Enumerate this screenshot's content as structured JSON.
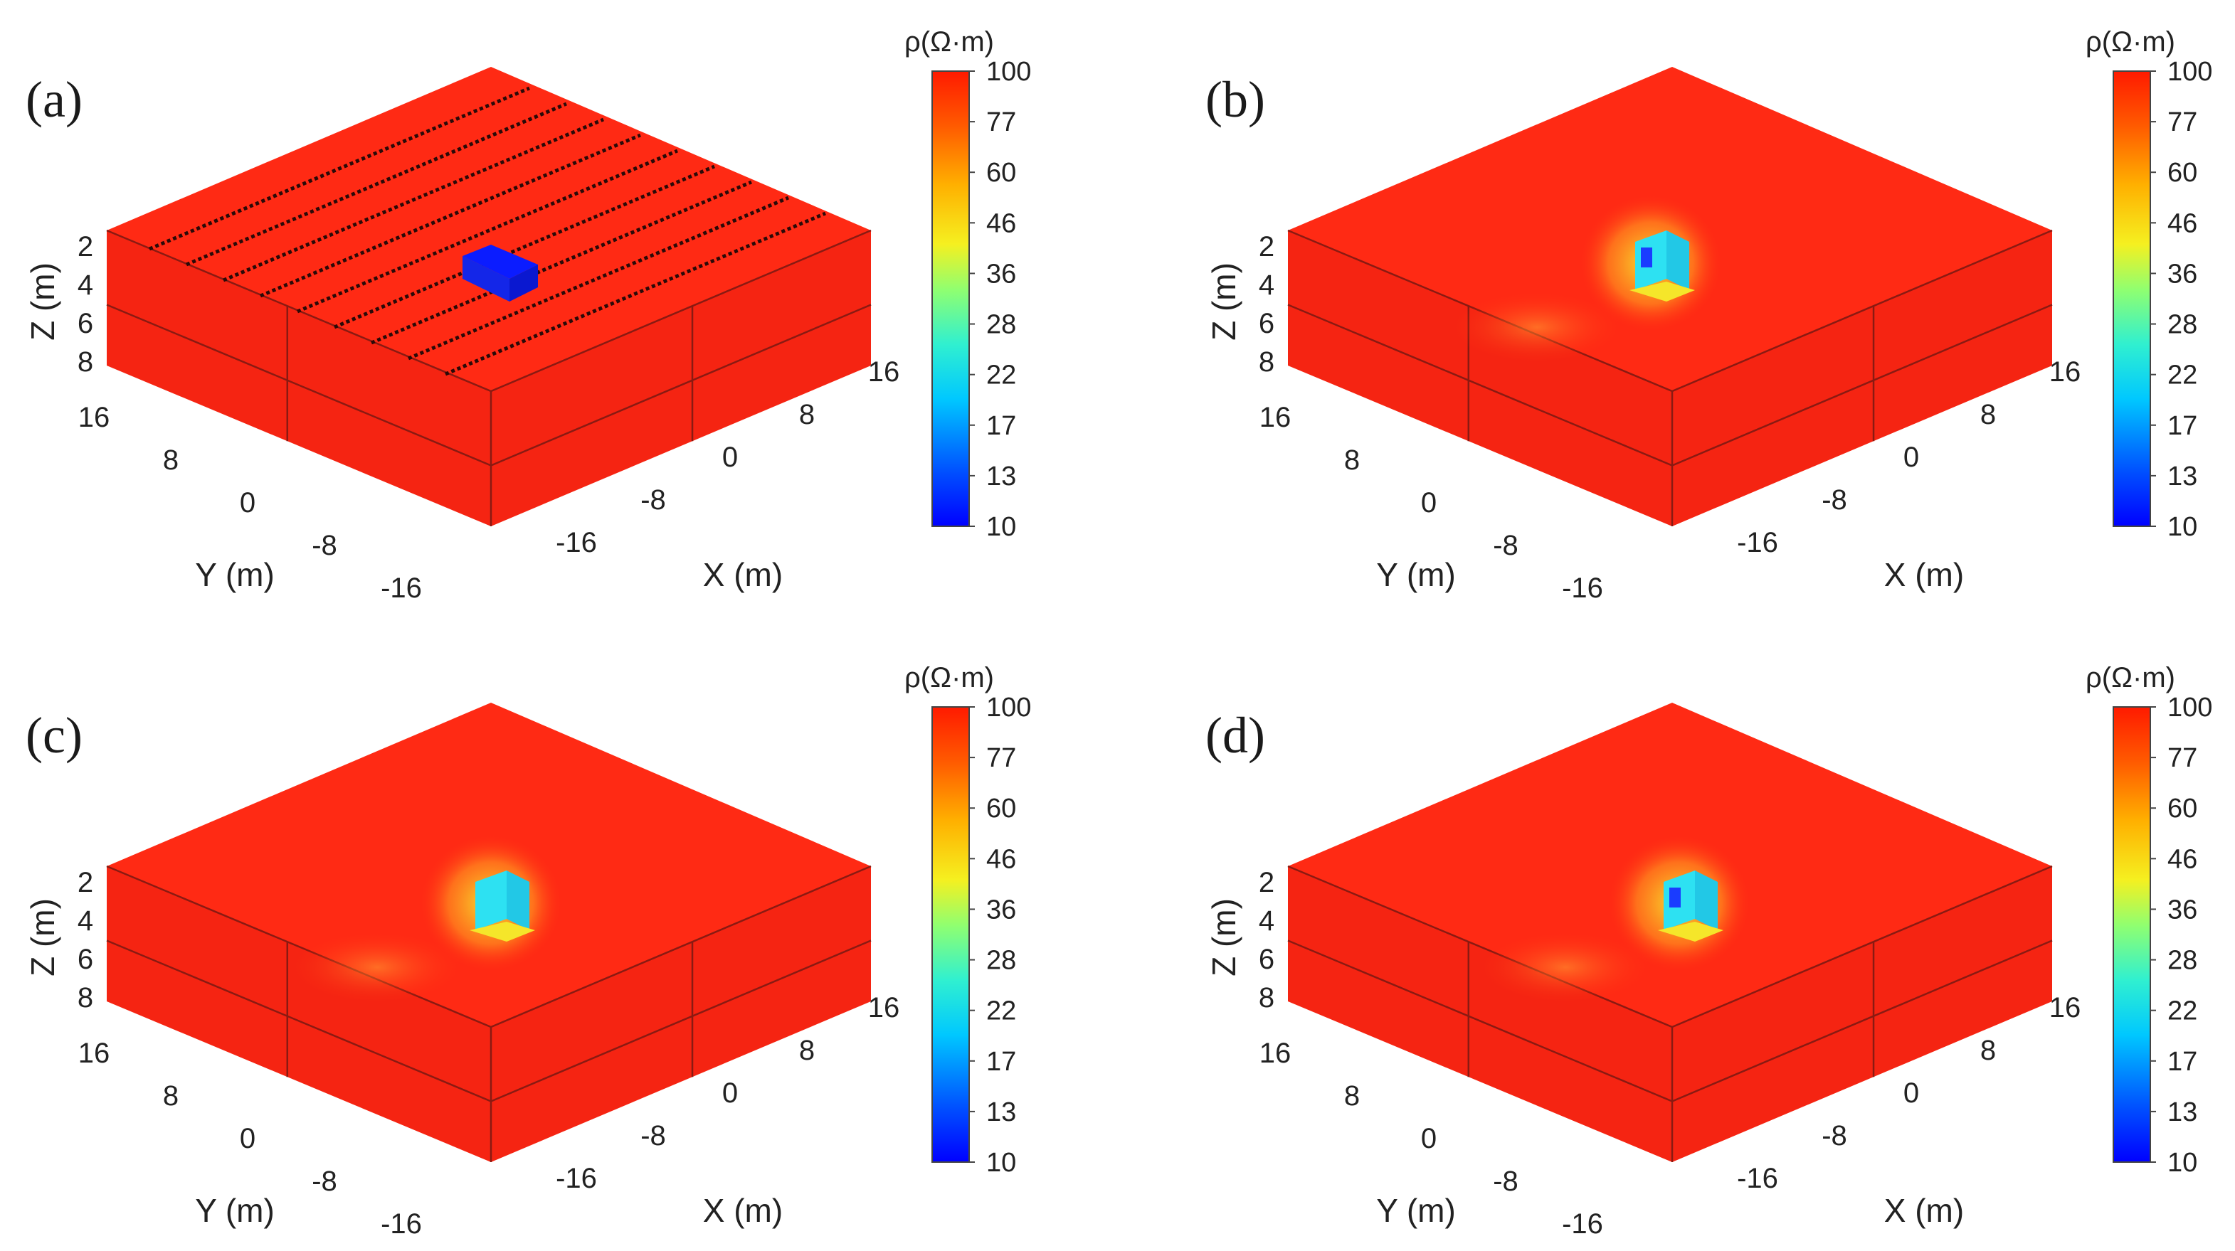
{
  "colors": {
    "background": "#ff2a14",
    "low": "#0b1cff",
    "cyan": "#2de1f2",
    "yellow": "#f5e62a",
    "orange": "#ff8a1a"
  },
  "chart_data": [
    {
      "type": "heatmap",
      "panel_label": "(a)",
      "title": "",
      "xlabel": "X (m)",
      "ylabel": "Y (m)",
      "zlabel": "Z (m)",
      "x_ticks": [
        "-16",
        "-8",
        "0",
        "8",
        "16"
      ],
      "y_ticks": [
        "16",
        "8",
        "0",
        "-8",
        "-16"
      ],
      "z_ticks": [
        "2",
        "4",
        "6",
        "8"
      ],
      "colorbar": {
        "title": "ρ(Ω·m)",
        "ticks": [
          "100",
          "77",
          "60",
          "46",
          "36",
          "28",
          "22",
          "17",
          "13",
          "10"
        ],
        "range": [
          10,
          100
        ],
        "scale": "log"
      },
      "background_resistivity": 100,
      "anomaly_resistivity": 10,
      "electrode_lines": 9
    },
    {
      "type": "heatmap",
      "panel_label": "(b)",
      "title": "",
      "xlabel": "X (m)",
      "ylabel": "Y (m)",
      "zlabel": "Z (m)",
      "x_ticks": [
        "-16",
        "-8",
        "0",
        "8",
        "16"
      ],
      "y_ticks": [
        "16",
        "8",
        "0",
        "-8",
        "-16"
      ],
      "z_ticks": [
        "2",
        "4",
        "6",
        "8"
      ],
      "colorbar": {
        "title": "ρ(Ω·m)",
        "ticks": [
          "100",
          "77",
          "60",
          "46",
          "36",
          "28",
          "22",
          "17",
          "13",
          "10"
        ],
        "range": [
          10,
          100
        ],
        "scale": "log"
      },
      "background_resistivity": 100,
      "anomaly_min_resistivity": 13
    },
    {
      "type": "heatmap",
      "panel_label": "(c)",
      "title": "",
      "xlabel": "X (m)",
      "ylabel": "Y (m)",
      "zlabel": "Z (m)",
      "x_ticks": [
        "-16",
        "-8",
        "0",
        "8",
        "16"
      ],
      "y_ticks": [
        "16",
        "8",
        "0",
        "-8",
        "-16"
      ],
      "z_ticks": [
        "2",
        "4",
        "6",
        "8"
      ],
      "colorbar": {
        "title": "ρ(Ω·m)",
        "ticks": [
          "100",
          "77",
          "60",
          "46",
          "36",
          "28",
          "22",
          "17",
          "13",
          "10"
        ],
        "range": [
          10,
          100
        ],
        "scale": "log"
      },
      "background_resistivity": 100,
      "anomaly_min_resistivity": 22
    },
    {
      "type": "heatmap",
      "panel_label": "(d)",
      "title": "",
      "xlabel": "X (m)",
      "ylabel": "Y (m)",
      "zlabel": "Z (m)",
      "x_ticks": [
        "-16",
        "-8",
        "0",
        "8",
        "16"
      ],
      "y_ticks": [
        "16",
        "8",
        "0",
        "-8",
        "-16"
      ],
      "z_ticks": [
        "2",
        "4",
        "6",
        "8"
      ],
      "colorbar": {
        "title": "ρ(Ω·m)",
        "ticks": [
          "100",
          "77",
          "60",
          "46",
          "36",
          "28",
          "22",
          "17",
          "13",
          "10"
        ],
        "range": [
          10,
          100
        ],
        "scale": "log"
      },
      "background_resistivity": 100,
      "anomaly_min_resistivity": 13
    }
  ]
}
